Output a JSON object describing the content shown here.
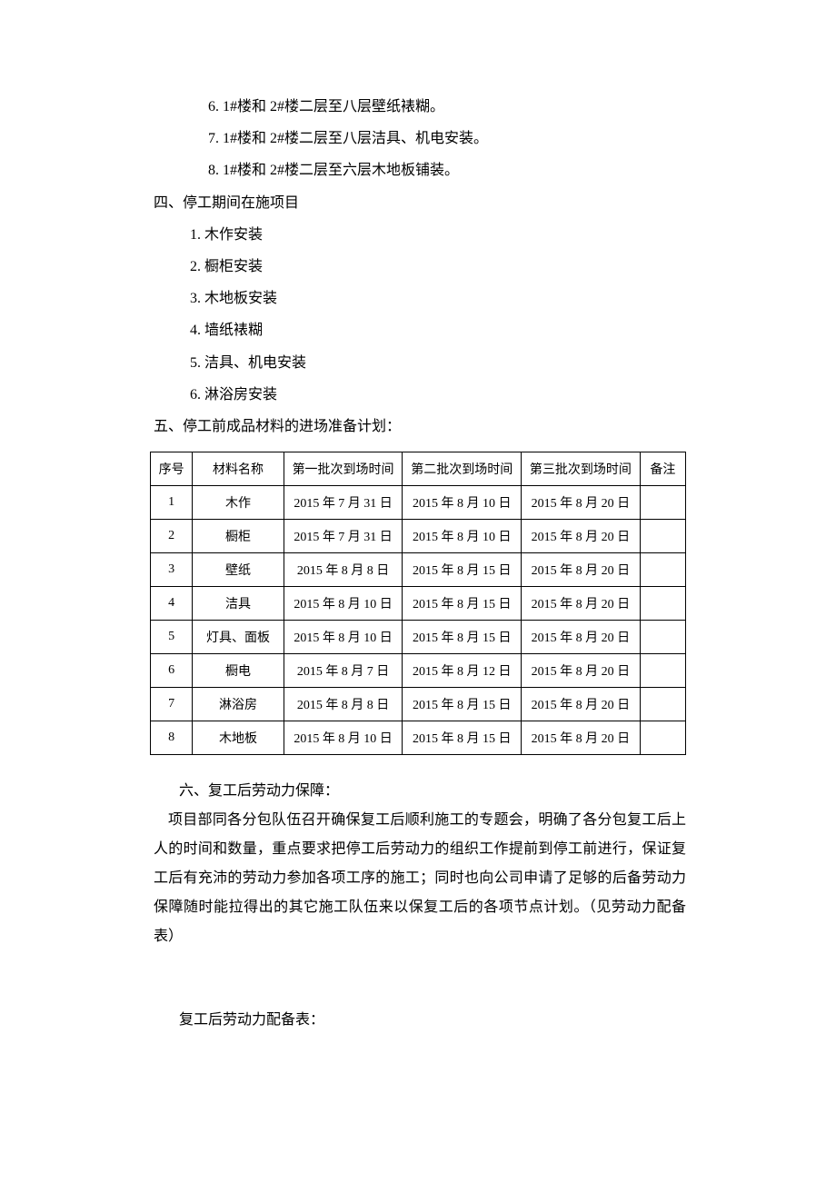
{
  "items_top": [
    "6.  1#楼和 2#楼二层至八层壁纸裱糊。",
    "7.  1#楼和 2#楼二层至八层洁具、机电安装。",
    "8.  1#楼和 2#楼二层至六层木地板铺装。"
  ],
  "section4": {
    "heading": "四、停工期间在施项目",
    "items": [
      "1. 木作安装",
      "2. 橱柜安装",
      "3. 木地板安装",
      "4. 墙纸裱糊",
      "5. 洁具、机电安装",
      "6. 淋浴房安装"
    ]
  },
  "section5": {
    "heading": "五、停工前成品材料的进场准备计划：",
    "table": {
      "columns": [
        "序号",
        "材料名称",
        "第一批次到场时间",
        "第二批次到场时间",
        "第三批次到场时间",
        "备注"
      ],
      "rows": [
        [
          "1",
          "木作",
          "2015 年 7 月 31 日",
          "2015 年 8 月 10 日",
          "2015 年 8 月 20 日",
          ""
        ],
        [
          "2",
          "橱柜",
          "2015 年 7 月 31 日",
          "2015 年 8 月 10 日",
          "2015 年 8 月 20 日",
          ""
        ],
        [
          "3",
          "壁纸",
          "2015 年 8 月 8 日",
          "2015 年 8 月 15 日",
          "2015 年 8 月 20 日",
          ""
        ],
        [
          "4",
          "洁具",
          "2015 年 8 月 10 日",
          "2015 年 8 月 15 日",
          "2015 年 8 月 20 日",
          ""
        ],
        [
          "5",
          "灯具、面板",
          "2015 年 8 月 10 日",
          "2015 年 8 月 15 日",
          "2015 年 8 月 20 日",
          ""
        ],
        [
          "6",
          "橱电",
          "2015 年 8 月 7 日",
          "2015 年 8 月 12 日",
          "2015 年 8 月 20 日",
          ""
        ],
        [
          "7",
          "淋浴房",
          "2015 年 8 月 8 日",
          "2015 年 8 月 15 日",
          "2015 年 8 月 20 日",
          ""
        ],
        [
          "8",
          "木地板",
          "2015 年 8 月 10 日",
          "2015 年 8 月 15 日",
          "2015 年 8 月 20 日",
          ""
        ]
      ]
    }
  },
  "section6": {
    "heading": "六、复工后劳动力保障：",
    "body": "项目部同各分包队伍召开确保复工后顺利施工的专题会，明确了各分包复工后上人的时间和数量，重点要求把停工后劳动力的组织工作提前到停工前进行，保证复工后有充沛的劳动力参加各项工序的施工；同时也向公司申请了足够的后备劳动力保障随时能拉得出的其它施工队伍来以保复工后的各项节点计划。（见劳动力配备表）"
  },
  "table2_label": "复工后劳动力配备表："
}
